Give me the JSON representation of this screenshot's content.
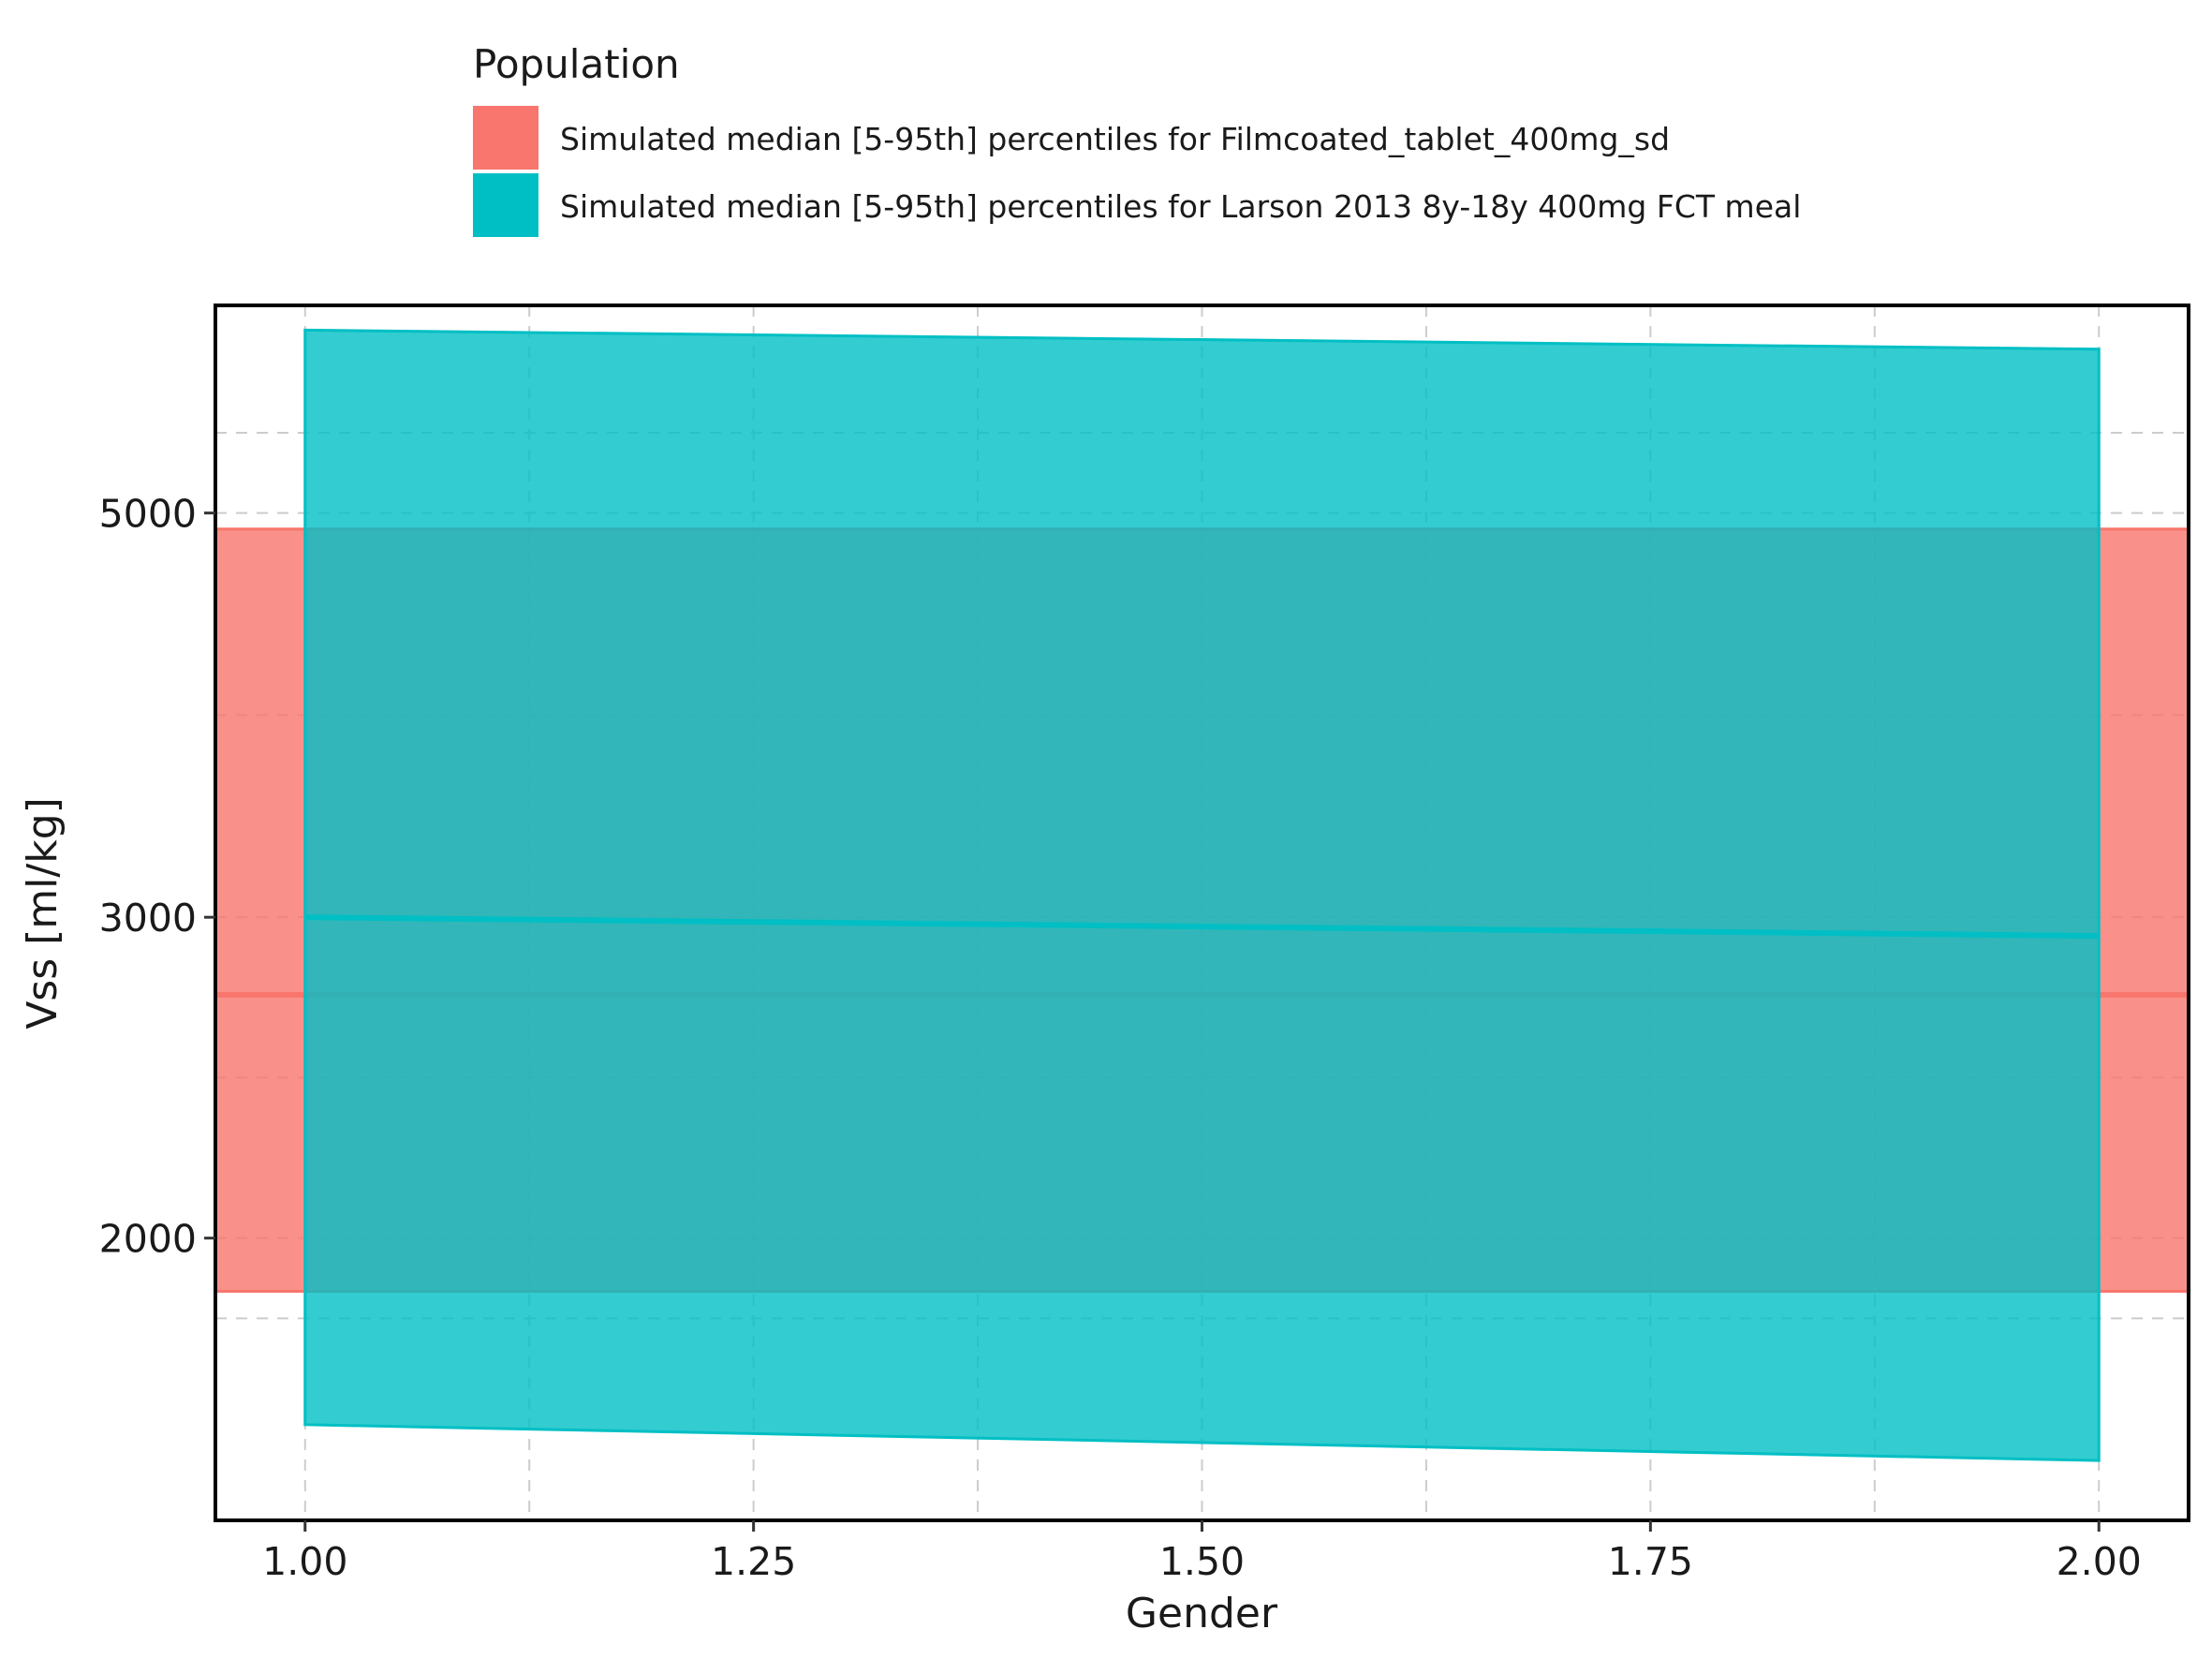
{
  "chart_data": {
    "type": "area",
    "xlabel": "Gender",
    "ylabel": "Vss [ml/kg]",
    "legend_title": "Population",
    "legend_position": "top",
    "grid": true,
    "y_scale": "log",
    "xlim": [
      0.95,
      2.05
    ],
    "ylim": [
      1400,
      6500
    ],
    "x_ticks": [
      1.0,
      1.25,
      1.5,
      1.75,
      2.0
    ],
    "x_tick_labels": [
      "1.00",
      "1.25",
      "1.50",
      "1.75",
      "2.00"
    ],
    "y_ticks": [
      2000,
      3000,
      5000
    ],
    "y_tick_labels": [
      "2000",
      "3000",
      "5000"
    ],
    "series": [
      {
        "name": "Simulated median [5-95th] percentiles for Filmcoated_tablet_400mg_sd",
        "color": "#F8766D",
        "x": [
          0.95,
          2.05
        ],
        "median": [
          2720,
          2720
        ],
        "lower": [
          1870,
          1870
        ],
        "upper": [
          4900,
          4900
        ]
      },
      {
        "name": "Simulated median [5-95th] percentiles for Larson 2013 8y-18y 400mg FCT meal",
        "color": "#00BFC4",
        "x": [
          1.0,
          2.0
        ],
        "median": [
          3000,
          2930
        ],
        "lower": [
          1580,
          1510
        ],
        "upper": [
          6300,
          6150
        ]
      }
    ]
  }
}
